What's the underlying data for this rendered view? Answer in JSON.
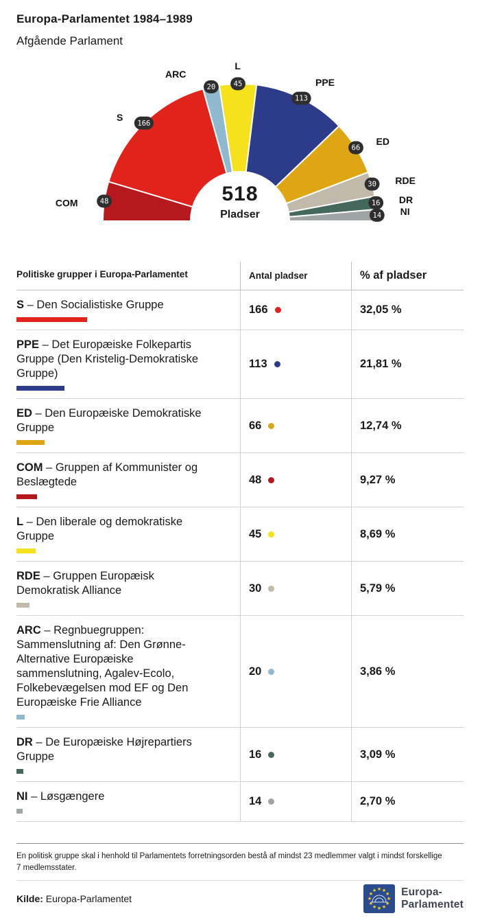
{
  "header": {
    "title": "Europa-Parlamentet 1984–1989",
    "subtitle": "Afgående Parlament"
  },
  "chart_data": {
    "type": "hemicycle",
    "title": "Europa-Parlamentet 1984–1989 – Afgående Parlament",
    "total": 518,
    "total_label": "Pladser",
    "order": "left-to-right",
    "groups": [
      {
        "abbr": "COM",
        "seats": 48,
        "color": "#b5191d"
      },
      {
        "abbr": "S",
        "seats": 166,
        "color": "#e2231b"
      },
      {
        "abbr": "ARC",
        "seats": 20,
        "color": "#8fb9ce"
      },
      {
        "abbr": "L",
        "seats": 45,
        "color": "#f5e11c"
      },
      {
        "abbr": "PPE",
        "seats": 113,
        "color": "#2c3c8a"
      },
      {
        "abbr": "ED",
        "seats": 66,
        "color": "#dfa614"
      },
      {
        "abbr": "RDE",
        "seats": 30,
        "color": "#c1b9a9"
      },
      {
        "abbr": "DR",
        "seats": 16,
        "color": "#44685b"
      },
      {
        "abbr": "NI",
        "seats": 14,
        "color": "#9fa5a4"
      }
    ]
  },
  "table": {
    "headers": [
      "Politiske grupper i Europa-Parlamentet",
      "Antal pladser",
      "% af pladser"
    ],
    "separator": "–",
    "rows": [
      {
        "abbr": "S",
        "name": "Den Socialistiske Gruppe",
        "seats": 166,
        "percent": "32,05 %"
      },
      {
        "abbr": "PPE",
        "name": "Det Europæiske Folkepartis Gruppe (Den Kristelig-Demokratiske Gruppe)",
        "seats": 113,
        "percent": "21,81 %"
      },
      {
        "abbr": "ED",
        "name": "Den Europæiske Demokratiske Gruppe",
        "seats": 66,
        "percent": "12,74 %"
      },
      {
        "abbr": "COM",
        "name": "Gruppen af Kommunister og Beslægtede",
        "seats": 48,
        "percent": "9,27 %"
      },
      {
        "abbr": "L",
        "name": "Den liberale og demokratiske Gruppe",
        "seats": 45,
        "percent": "8,69 %"
      },
      {
        "abbr": "RDE",
        "name": "Gruppen Europæisk Demokratisk Alliance",
        "seats": 30,
        "percent": "5,79 %"
      },
      {
        "abbr": "ARC",
        "name": "Regnbuegruppen: Sammenslutning af: Den Grønne-Alternative Europæiske sammenslutning, Agalev-Ecolo, Folkebevægelsen mod EF og Den Europæiske Frie Alliance",
        "seats": 20,
        "percent": "3,86 %"
      },
      {
        "abbr": "DR",
        "name": "De Europæiske Højrepartiers Gruppe",
        "seats": 16,
        "percent": "3,09 %"
      },
      {
        "abbr": "NI",
        "name": "Løsgængere",
        "seats": 14,
        "percent": "2,70 %"
      }
    ]
  },
  "footnote": "En politisk gruppe skal i henhold til Parlamentets forretningsorden bestå af mindst 23 medlemmer valgt i mindst forskellige 7 medlemsstater.",
  "source": {
    "label": "Kilde:",
    "value": "Europa-Parlamentet"
  },
  "logo": {
    "line1": "Europa-",
    "line2": "Parlamentet"
  }
}
